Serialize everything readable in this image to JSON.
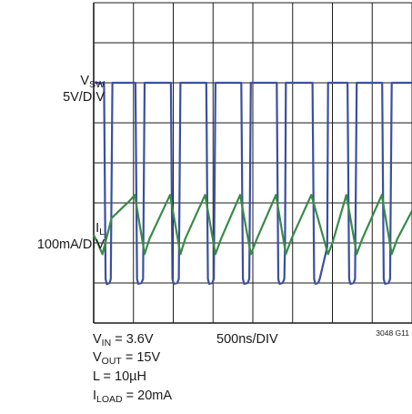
{
  "chart_data": {
    "type": "line",
    "title": "",
    "xlabel": "500ns/DIV",
    "figure_id": "3048 G11",
    "x_divisions": 8,
    "y_divisions": 8,
    "grid": true,
    "series": [
      {
        "name": "SW",
        "label_prefix": "V",
        "scale": "5V/DIV",
        "color": "#3a4fa0",
        "points": [
          [
            0,
            6.0
          ],
          [
            0.12,
            6.0
          ],
          [
            0.14,
            5.97
          ],
          [
            0.22,
            6.0
          ],
          [
            0.26,
            6.0
          ],
          [
            0.3,
            1.1
          ],
          [
            0.33,
            0.97
          ],
          [
            0.4,
            1.0
          ],
          [
            0.43,
            1.1
          ],
          [
            0.47,
            6.0
          ],
          [
            1.02,
            6.0
          ],
          [
            1.05,
            6.0
          ],
          [
            1.09,
            1.1
          ],
          [
            1.12,
            0.98
          ],
          [
            1.2,
            1.0
          ],
          [
            1.24,
            1.1
          ],
          [
            1.28,
            6.0
          ],
          [
            1.91,
            6.0
          ],
          [
            1.94,
            6.0
          ],
          [
            1.98,
            1.1
          ],
          [
            2.01,
            0.98
          ],
          [
            2.1,
            1.0
          ],
          [
            2.14,
            1.1
          ],
          [
            2.18,
            6.0
          ],
          [
            2.79,
            6.0
          ],
          [
            2.83,
            6.0
          ],
          [
            2.87,
            1.1
          ],
          [
            2.9,
            0.98
          ],
          [
            2.98,
            1.0
          ],
          [
            3.02,
            1.1
          ],
          [
            3.06,
            6.0
          ],
          [
            3.67,
            6.0
          ],
          [
            3.71,
            6.0
          ],
          [
            3.75,
            1.1
          ],
          [
            3.78,
            0.98
          ],
          [
            3.87,
            1.0
          ],
          [
            3.91,
            1.1
          ],
          [
            3.95,
            6.0
          ],
          [
            4.56,
            6.0
          ],
          [
            4.6,
            6.0
          ],
          [
            4.64,
            1.1
          ],
          [
            4.67,
            0.98
          ],
          [
            4.75,
            1.0
          ],
          [
            4.79,
            1.1
          ],
          [
            4.81,
            2.0
          ],
          [
            4.83,
            6.0
          ],
          [
            5.45,
            6.0
          ],
          [
            5.5,
            6.0
          ],
          [
            5.54,
            1.1
          ],
          [
            5.57,
            0.98
          ],
          [
            5.64,
            1.0
          ],
          [
            5.68,
            1.1
          ],
          [
            5.87,
            1.9
          ],
          [
            5.89,
            6.0
          ],
          [
            6.33,
            6.0
          ],
          [
            6.38,
            6.0
          ],
          [
            6.42,
            1.1
          ],
          [
            6.45,
            0.98
          ],
          [
            6.53,
            1.0
          ],
          [
            6.57,
            1.1
          ],
          [
            6.61,
            6.0
          ],
          [
            7.22,
            6.0
          ],
          [
            7.25,
            6.0
          ],
          [
            7.29,
            1.1
          ],
          [
            7.32,
            0.98
          ],
          [
            7.41,
            1.0
          ],
          [
            7.45,
            1.1
          ],
          [
            7.49,
            6.0
          ],
          [
            8.0,
            6.0
          ]
        ]
      },
      {
        "name": "L",
        "label_prefix": "I",
        "scale": "100mA/DIV",
        "color": "#3a8a48",
        "points": [
          [
            0,
            2.2
          ],
          [
            0.1,
            2.0
          ],
          [
            0.22,
            1.72
          ],
          [
            0.45,
            2.62
          ],
          [
            0.9,
            3.05
          ],
          [
            1.03,
            3.2
          ],
          [
            1.28,
            1.72
          ],
          [
            1.4,
            2.1
          ],
          [
            1.92,
            3.2
          ],
          [
            2.18,
            1.72
          ],
          [
            2.3,
            2.1
          ],
          [
            2.8,
            3.2
          ],
          [
            3.06,
            1.72
          ],
          [
            3.2,
            2.1
          ],
          [
            3.68,
            3.2
          ],
          [
            3.95,
            1.72
          ],
          [
            4.1,
            2.1
          ],
          [
            4.58,
            3.2
          ],
          [
            4.83,
            1.72
          ],
          [
            4.97,
            2.1
          ],
          [
            5.47,
            3.2
          ],
          [
            5.89,
            1.72
          ],
          [
            6.0,
            2.0
          ],
          [
            6.35,
            3.2
          ],
          [
            6.61,
            1.72
          ],
          [
            6.75,
            2.1
          ],
          [
            7.24,
            3.2
          ],
          [
            7.49,
            1.72
          ],
          [
            7.63,
            2.1
          ],
          [
            8.0,
            2.8
          ]
        ]
      }
    ],
    "conditions": [
      {
        "prefix": "V",
        "sub": "IN",
        "text": " = 3.6V"
      },
      {
        "prefix": "V",
        "sub": "OUT",
        "text": " = 15V"
      },
      {
        "prefix": "L = 10µH",
        "sub": "",
        "text": ""
      },
      {
        "prefix": "I",
        "sub": "LOAD",
        "text": " = 20mA"
      }
    ]
  }
}
